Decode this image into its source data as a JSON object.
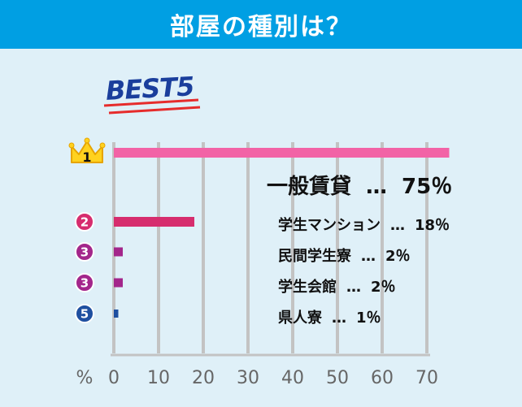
{
  "header": {
    "title": "部屋の種別は？"
  },
  "badge": "BEST5",
  "colors": {
    "header_bg": "#009fe3",
    "panel_bg": "#dff0f8",
    "grid": "#c3c3c3",
    "rank1": "#f263a6",
    "rank2": "#d62d6e",
    "rank3": "#a3268b",
    "rank5": "#1e4fa0",
    "badge_text": "#1a3e9c",
    "badge_underline": "#e62c2c"
  },
  "chart_data": {
    "type": "bar",
    "orientation": "horizontal",
    "axis_unit": "%",
    "xlim": [
      0,
      70
    ],
    "x_ticks": [
      "0",
      "10",
      "20",
      "30",
      "40",
      "50",
      "60",
      "70"
    ],
    "items": [
      {
        "rank": "1",
        "category": "一般賃貸",
        "sep": "…",
        "value": 75,
        "value_label": "75％",
        "color": "#f263a6",
        "marker": "crown-icon"
      },
      {
        "rank": "2",
        "category": "学生マンション",
        "sep": "…",
        "value": 18,
        "value_label": "18％",
        "color": "#d62d6e",
        "marker": "circle"
      },
      {
        "rank": "3",
        "category": "民間学生寮",
        "sep": "…",
        "value": 2,
        "value_label": "2％",
        "color": "#a3268b",
        "marker": "circle"
      },
      {
        "rank": "3",
        "category": "学生会館",
        "sep": "…",
        "value": 2,
        "value_label": "2％",
        "color": "#a3268b",
        "marker": "circle"
      },
      {
        "rank": "5",
        "category": "県人寮",
        "sep": "…",
        "value": 1,
        "value_label": "1％",
        "color": "#1e4fa0",
        "marker": "circle"
      }
    ]
  }
}
